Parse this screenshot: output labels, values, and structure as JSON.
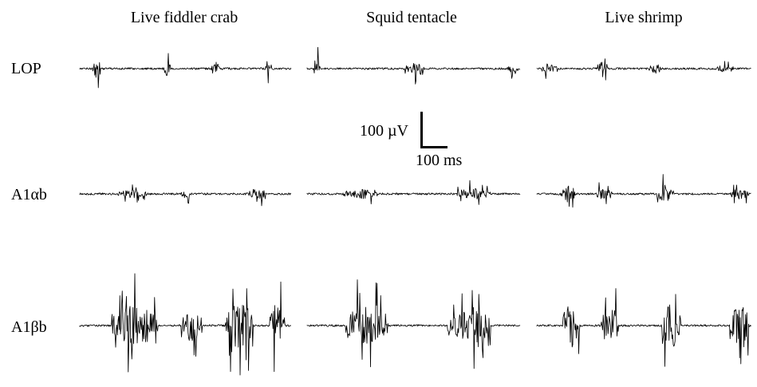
{
  "columns": [
    "Live fiddler crab",
    "Squid tentacle",
    "Live shrimp"
  ],
  "rows": [
    "LOP",
    "A1αb",
    "A1βb"
  ],
  "scale_bar": {
    "voltage_label": "100 µV",
    "time_label": "100 ms"
  },
  "traces": [
    {
      "row": 0,
      "col": 0,
      "bursts": [
        [
          0.06,
          0.1,
          34
        ],
        [
          0.39,
          0.43,
          28
        ],
        [
          0.62,
          0.66,
          24
        ],
        [
          0.88,
          0.91,
          24
        ]
      ]
    },
    {
      "row": 0,
      "col": 1,
      "bursts": [
        [
          0.03,
          0.06,
          36
        ],
        [
          0.46,
          0.55,
          20
        ],
        [
          0.94,
          0.99,
          14
        ]
      ]
    },
    {
      "row": 0,
      "col": 2,
      "bursts": [
        [
          0.02,
          0.1,
          20
        ],
        [
          0.28,
          0.33,
          30
        ],
        [
          0.52,
          0.58,
          20
        ],
        [
          0.84,
          0.92,
          14
        ]
      ]
    },
    {
      "row": 1,
      "col": 0,
      "bursts": [
        [
          0.18,
          0.32,
          14
        ],
        [
          0.48,
          0.52,
          18
        ],
        [
          0.8,
          0.88,
          20
        ]
      ]
    },
    {
      "row": 1,
      "col": 1,
      "bursts": [
        [
          0.17,
          0.33,
          18
        ],
        [
          0.7,
          0.86,
          20
        ]
      ]
    },
    {
      "row": 1,
      "col": 2,
      "bursts": [
        [
          0.11,
          0.18,
          30
        ],
        [
          0.28,
          0.35,
          24
        ],
        [
          0.56,
          0.64,
          28
        ],
        [
          0.9,
          0.99,
          18
        ]
      ]
    },
    {
      "row": 2,
      "col": 0,
      "bursts": [
        [
          0.15,
          0.37,
          72
        ],
        [
          0.48,
          0.58,
          56
        ],
        [
          0.69,
          0.82,
          80
        ],
        [
          0.9,
          0.97,
          78
        ]
      ]
    },
    {
      "row": 2,
      "col": 1,
      "bursts": [
        [
          0.18,
          0.38,
          70
        ],
        [
          0.66,
          0.86,
          66
        ]
      ]
    },
    {
      "row": 2,
      "col": 2,
      "bursts": [
        [
          0.12,
          0.2,
          78
        ],
        [
          0.3,
          0.38,
          66
        ],
        [
          0.58,
          0.67,
          80
        ],
        [
          0.9,
          0.99,
          72
        ]
      ]
    }
  ]
}
